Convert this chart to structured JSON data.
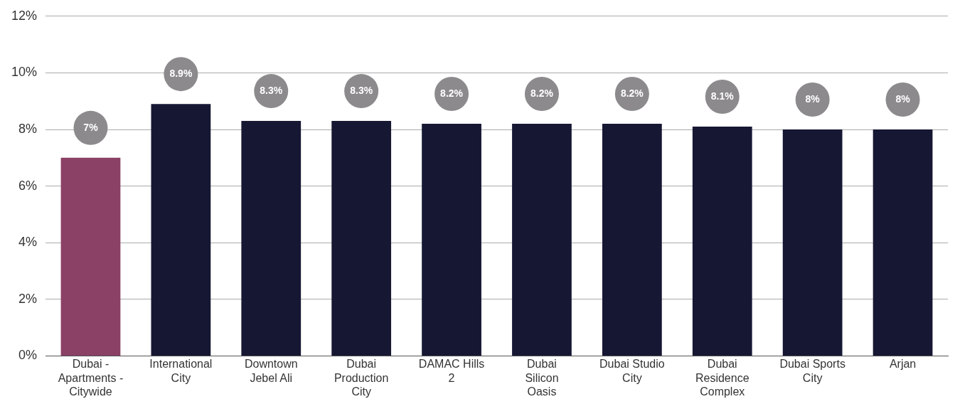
{
  "chart_data": {
    "type": "bar",
    "categories": [
      "Dubai - Apartments - Citywide",
      "International City",
      "Downtown Jebel Ali",
      "Dubai Production City",
      "DAMAC Hills 2",
      "Dubai Silicon Oasis",
      "Dubai Studio City",
      "Dubai Residence Complex",
      "Dubai Sports City",
      "Arjan"
    ],
    "values": [
      7,
      8.9,
      8.3,
      8.3,
      8.2,
      8.2,
      8.2,
      8.1,
      8,
      8
    ],
    "colors": [
      "#8b4065",
      "#161733",
      "#161733",
      "#161733",
      "#161733",
      "#161733",
      "#161733",
      "#161733",
      "#161733",
      "#161733"
    ],
    "value_labels": [
      "7%",
      "8.9%",
      "8.3%",
      "8.3%",
      "8.2%",
      "8.2%",
      "8.2%",
      "8.1%",
      "8%",
      "8%"
    ],
    "ylim": [
      0,
      12
    ],
    "yticks": [
      {
        "value": 0,
        "label": "0%"
      },
      {
        "value": 2,
        "label": "2%"
      },
      {
        "value": 4,
        "label": "4%"
      },
      {
        "value": 6,
        "label": "6%"
      },
      {
        "value": 8,
        "label": "8%"
      },
      {
        "value": 10,
        "label": "10%"
      },
      {
        "value": 12,
        "label": "12%"
      }
    ],
    "grid": "y",
    "legend": false
  }
}
